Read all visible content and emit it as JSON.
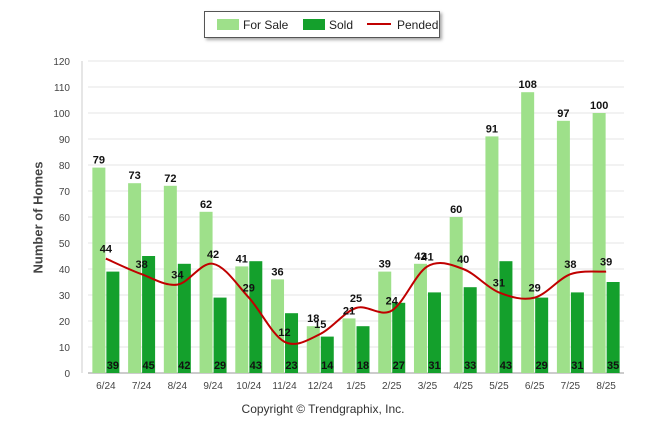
{
  "chart_data": {
    "type": "bar",
    "ylabel": "Number of Homes",
    "ylim": [
      0,
      120
    ],
    "yticks": [
      0,
      10,
      20,
      30,
      40,
      50,
      60,
      70,
      80,
      90,
      100,
      110,
      120
    ],
    "categories": [
      "6/24",
      "7/24",
      "8/24",
      "9/24",
      "10/24",
      "11/24",
      "12/24",
      "1/25",
      "2/25",
      "3/25",
      "4/25",
      "5/25",
      "6/25",
      "7/25",
      "8/25"
    ],
    "series": [
      {
        "name": "For Sale",
        "type": "bar",
        "color": "#9ee08a",
        "values": [
          79,
          73,
          72,
          62,
          41,
          36,
          18,
          21,
          39,
          42,
          60,
          91,
          108,
          97,
          100
        ]
      },
      {
        "name": "Sold",
        "type": "bar",
        "color": "#14a02c",
        "values": [
          39,
          45,
          42,
          29,
          43,
          23,
          14,
          18,
          27,
          31,
          33,
          43,
          29,
          31,
          35
        ]
      },
      {
        "name": "Pended",
        "type": "line",
        "color": "#c00000",
        "values": [
          44,
          38,
          34,
          42,
          29,
          12,
          15,
          25,
          24,
          41,
          40,
          31,
          29,
          38,
          39
        ]
      }
    ],
    "legend_position": "top-center",
    "grid": true
  },
  "copyright": "Copyright © Trendgraphix, Inc."
}
